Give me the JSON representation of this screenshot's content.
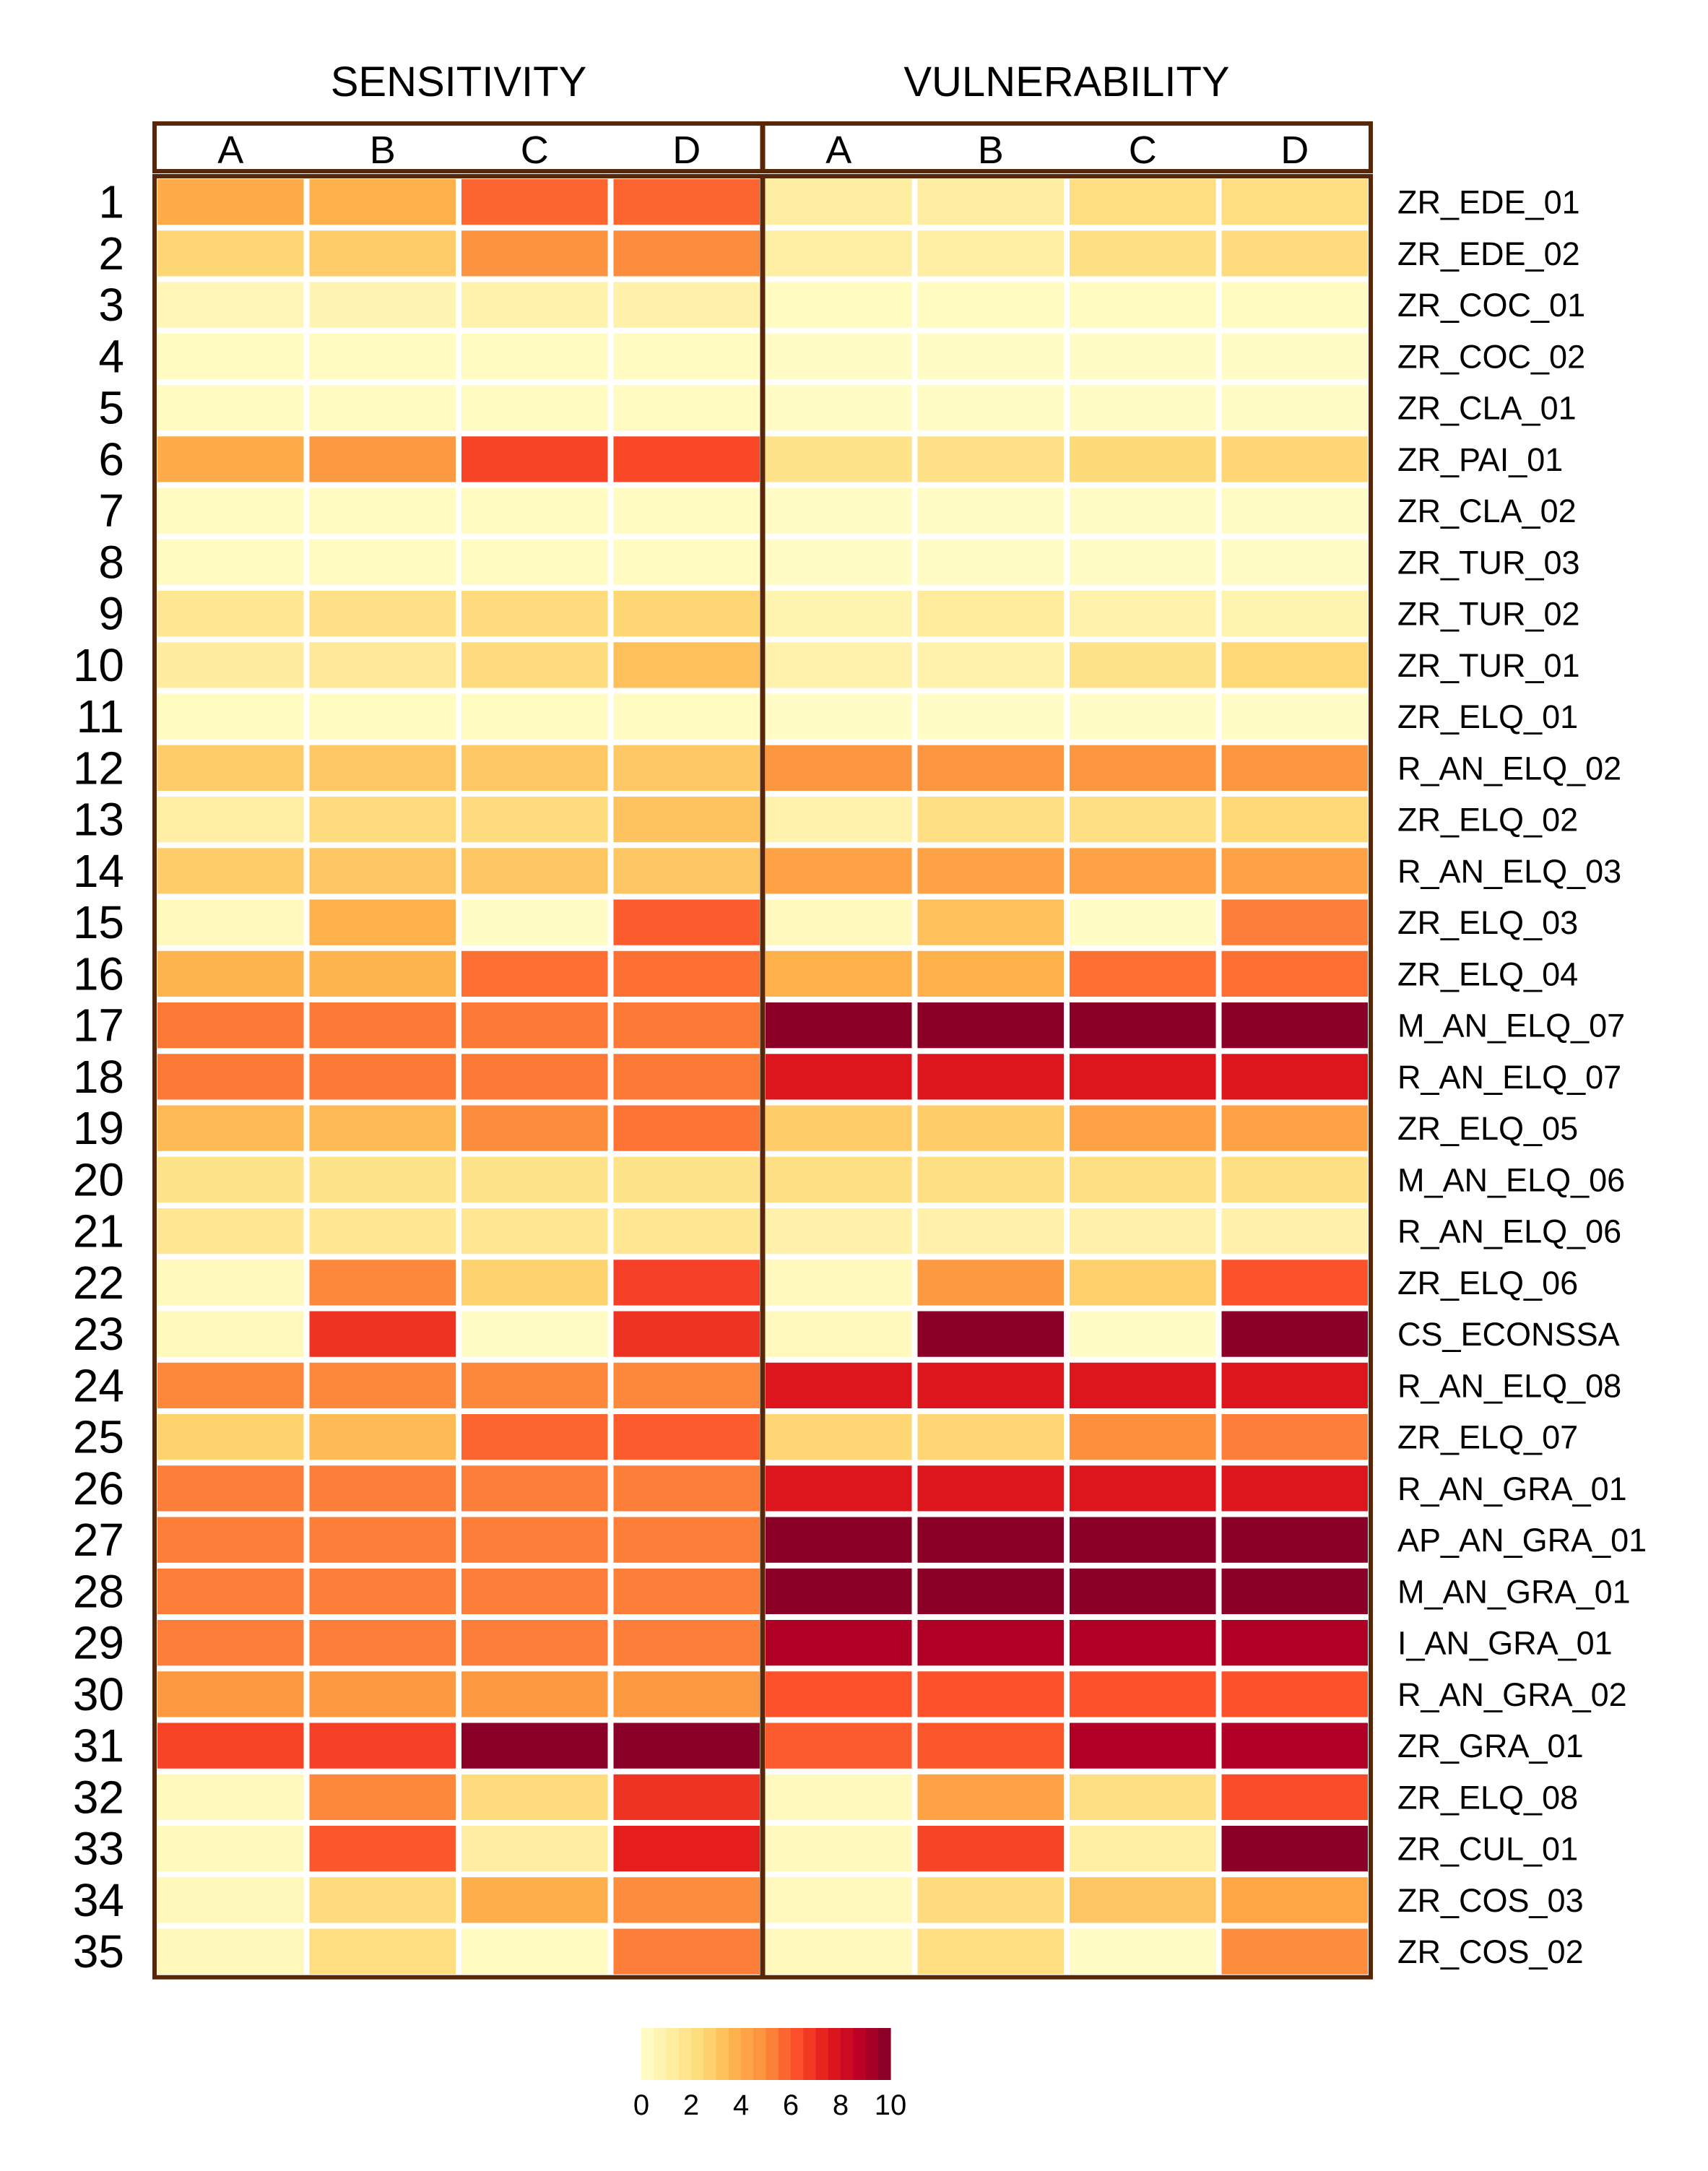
{
  "chart_data": {
    "type": "heatmap",
    "groups": [
      "SENSITIVITY",
      "VULNERABILITY"
    ],
    "group_columns": [
      "A",
      "B",
      "C",
      "D"
    ],
    "row_numbers": [
      "1",
      "2",
      "3",
      "4",
      "5",
      "6",
      "7",
      "8",
      "9",
      "10",
      "11",
      "12",
      "13",
      "14",
      "15",
      "16",
      "17",
      "18",
      "19",
      "20",
      "21",
      "22",
      "23",
      "24",
      "25",
      "26",
      "27",
      "28",
      "29",
      "30",
      "31",
      "32",
      "33",
      "34",
      "35"
    ],
    "row_labels": [
      "ZR_EDE_01",
      "ZR_EDE_02",
      "ZR_COC_01",
      "ZR_COC_02",
      "ZR_CLA_01",
      "ZR_PAI_01",
      "ZR_CLA_02",
      "ZR_TUR_03",
      "ZR_TUR_02",
      "ZR_TUR_01",
      "ZR_ELQ_01",
      "R_AN_ELQ_02",
      "ZR_ELQ_02",
      "R_AN_ELQ_03",
      "ZR_ELQ_03",
      "ZR_ELQ_04",
      "M_AN_ELQ_07",
      "R_AN_ELQ_07",
      "ZR_ELQ_05",
      "M_AN_ELQ_06",
      "R_AN_ELQ_06",
      "ZR_ELQ_06",
      "CS_ECONSSA",
      "R_AN_ELQ_08",
      "ZR_ELQ_07",
      "R_AN_GRA_01",
      "AP_AN_GRA_01",
      "M_AN_GRA_01",
      "I_AN_GRA_01",
      "R_AN_GRA_02",
      "ZR_GRA_01",
      "ZR_ELQ_08",
      "ZR_CUL_01",
      "ZR_COS_03",
      "ZR_COS_02"
    ],
    "values": [
      [
        4.0,
        3.8,
        5.8,
        5.8,
        1.2,
        1.2,
        2.2,
        2.2
      ],
      [
        2.6,
        2.9,
        4.8,
        5.0,
        1.1,
        1.1,
        2.1,
        2.3
      ],
      [
        0.6,
        0.7,
        0.9,
        1.0,
        0.3,
        0.3,
        0.3,
        0.3
      ],
      [
        0.3,
        0.3,
        0.3,
        0.3,
        0.2,
        0.2,
        0.2,
        0.2
      ],
      [
        0.3,
        0.3,
        0.3,
        0.3,
        0.2,
        0.2,
        0.2,
        0.2
      ],
      [
        4.0,
        4.6,
        6.5,
        6.4,
        1.9,
        2.0,
        2.4,
        2.6
      ],
      [
        0.3,
        0.3,
        0.3,
        0.3,
        0.2,
        0.2,
        0.2,
        0.2
      ],
      [
        0.3,
        0.3,
        0.3,
        0.3,
        0.2,
        0.2,
        0.2,
        0.2
      ],
      [
        1.6,
        2.0,
        2.3,
        2.6,
        0.8,
        1.4,
        0.9,
        0.8
      ],
      [
        1.3,
        1.5,
        2.3,
        3.3,
        0.9,
        0.9,
        1.9,
        2.5
      ],
      [
        0.3,
        0.3,
        0.3,
        0.3,
        0.2,
        0.2,
        0.2,
        0.2
      ],
      [
        2.9,
        3.0,
        3.0,
        3.0,
        4.7,
        4.7,
        4.7,
        4.7
      ],
      [
        1.1,
        2.3,
        2.3,
        3.2,
        0.9,
        2.1,
        2.1,
        2.5
      ],
      [
        2.9,
        3.1,
        3.1,
        3.1,
        4.3,
        4.3,
        4.3,
        4.3
      ],
      [
        0.4,
        3.8,
        0.2,
        6.0,
        0.4,
        3.3,
        0.2,
        5.3
      ],
      [
        3.7,
        3.7,
        5.6,
        5.6,
        3.8,
        3.8,
        5.6,
        5.6
      ],
      [
        5.4,
        5.4,
        5.4,
        5.4,
        9.8,
        9.8,
        9.8,
        9.8
      ],
      [
        5.4,
        5.4,
        5.4,
        5.4,
        7.7,
        7.7,
        7.7,
        7.7
      ],
      [
        3.5,
        3.5,
        5.0,
        5.5,
        2.9,
        2.9,
        4.3,
        4.3
      ],
      [
        1.9,
        1.9,
        1.9,
        1.9,
        2.1,
        2.1,
        2.1,
        2.1
      ],
      [
        1.6,
        1.6,
        1.6,
        1.6,
        1.0,
        1.0,
        1.0,
        1.0
      ],
      [
        0.4,
        5.1,
        2.7,
        6.6,
        0.4,
        4.6,
        2.8,
        6.2
      ],
      [
        0.4,
        6.9,
        0.2,
        6.9,
        0.4,
        9.8,
        0.2,
        9.8
      ],
      [
        5.1,
        5.1,
        5.1,
        5.1,
        7.7,
        7.7,
        7.7,
        7.7
      ],
      [
        2.7,
        3.5,
        5.8,
        6.0,
        2.6,
        2.6,
        4.9,
        5.3
      ],
      [
        5.3,
        5.3,
        5.3,
        5.3,
        7.7,
        7.7,
        7.7,
        7.7
      ],
      [
        5.3,
        5.3,
        5.3,
        5.3,
        9.8,
        9.8,
        9.8,
        9.8
      ],
      [
        5.3,
        5.3,
        5.3,
        5.3,
        9.8,
        9.8,
        9.8,
        9.8
      ],
      [
        5.3,
        5.3,
        5.3,
        5.3,
        9.0,
        9.0,
        9.0,
        9.0
      ],
      [
        4.6,
        4.6,
        4.6,
        4.6,
        6.2,
        6.2,
        6.2,
        6.2
      ],
      [
        6.5,
        6.6,
        9.8,
        9.8,
        6.0,
        6.1,
        9.0,
        9.0
      ],
      [
        0.4,
        5.1,
        2.3,
        6.9,
        0.4,
        4.3,
        2.1,
        6.3
      ],
      [
        0.4,
        6.1,
        1.2,
        7.4,
        0.4,
        6.5,
        1.1,
        9.8
      ],
      [
        0.5,
        2.3,
        3.9,
        5.0,
        0.4,
        2.3,
        3.1,
        4.2
      ],
      [
        0.5,
        2.2,
        0.3,
        5.3,
        0.4,
        2.2,
        0.2,
        5.0
      ]
    ],
    "colorbar": {
      "min": 0,
      "max": 10,
      "ticks": [
        "0",
        "2",
        "4",
        "6",
        "8",
        "10"
      ]
    },
    "color_scale": [
      "#ffffcc",
      "#ffeda0",
      "#fed976",
      "#feb24c",
      "#fd8d3c",
      "#fc4e2a",
      "#e31a1c",
      "#bd0026",
      "#800026"
    ]
  }
}
